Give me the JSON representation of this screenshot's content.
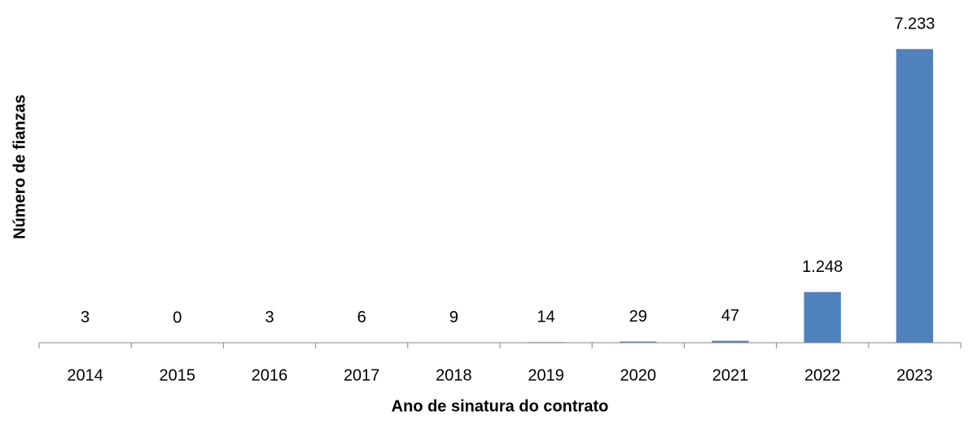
{
  "chart_data": {
    "type": "bar",
    "x_label": "Ano de sinatura do contrato",
    "y_label": "Número de fianzas",
    "categories": [
      "2014",
      "2015",
      "2016",
      "2017",
      "2018",
      "2019",
      "2020",
      "2021",
      "2022",
      "2023"
    ],
    "values": [
      3,
      0,
      3,
      6,
      9,
      14,
      29,
      47,
      1248,
      7233
    ],
    "value_labels": [
      "3",
      "0",
      "3",
      "6",
      "9",
      "14",
      "29",
      "47",
      "1.248",
      "7.233"
    ],
    "color": "#4f81bd",
    "ylim": [
      0,
      8000
    ],
    "grid": false
  }
}
